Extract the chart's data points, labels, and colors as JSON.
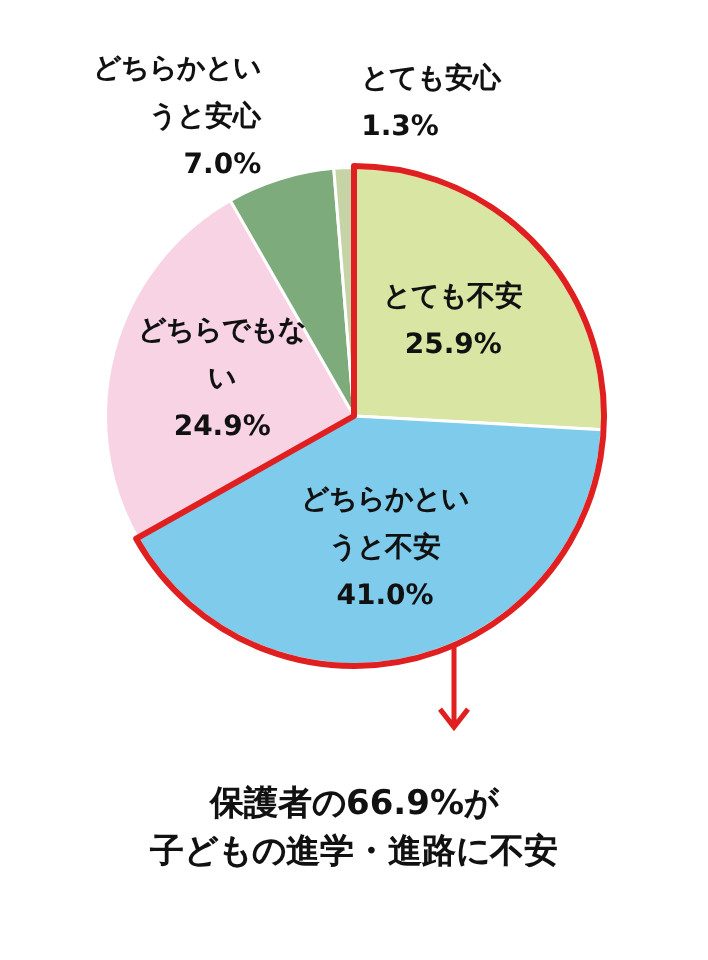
{
  "chart_data": {
    "type": "pie",
    "categories": [
      "とても不安",
      "どちらかというと不安",
      "どちらでもない",
      "どちらかというと安心",
      "とても安心"
    ],
    "values": [
      25.9,
      41.0,
      24.9,
      7.0,
      1.3
    ],
    "colors": [
      "#d9e5a3",
      "#7ecbeb",
      "#f8d3e3",
      "#7dab7c",
      "#c5d3a6"
    ],
    "value_labels": [
      "25.9%",
      "41.0%",
      "24.9%",
      "7.0%",
      "1.3%"
    ],
    "legend": false,
    "annotations": [
      "保護者の66.9%が",
      "子どもの進学・進路に不安"
    ]
  }
}
